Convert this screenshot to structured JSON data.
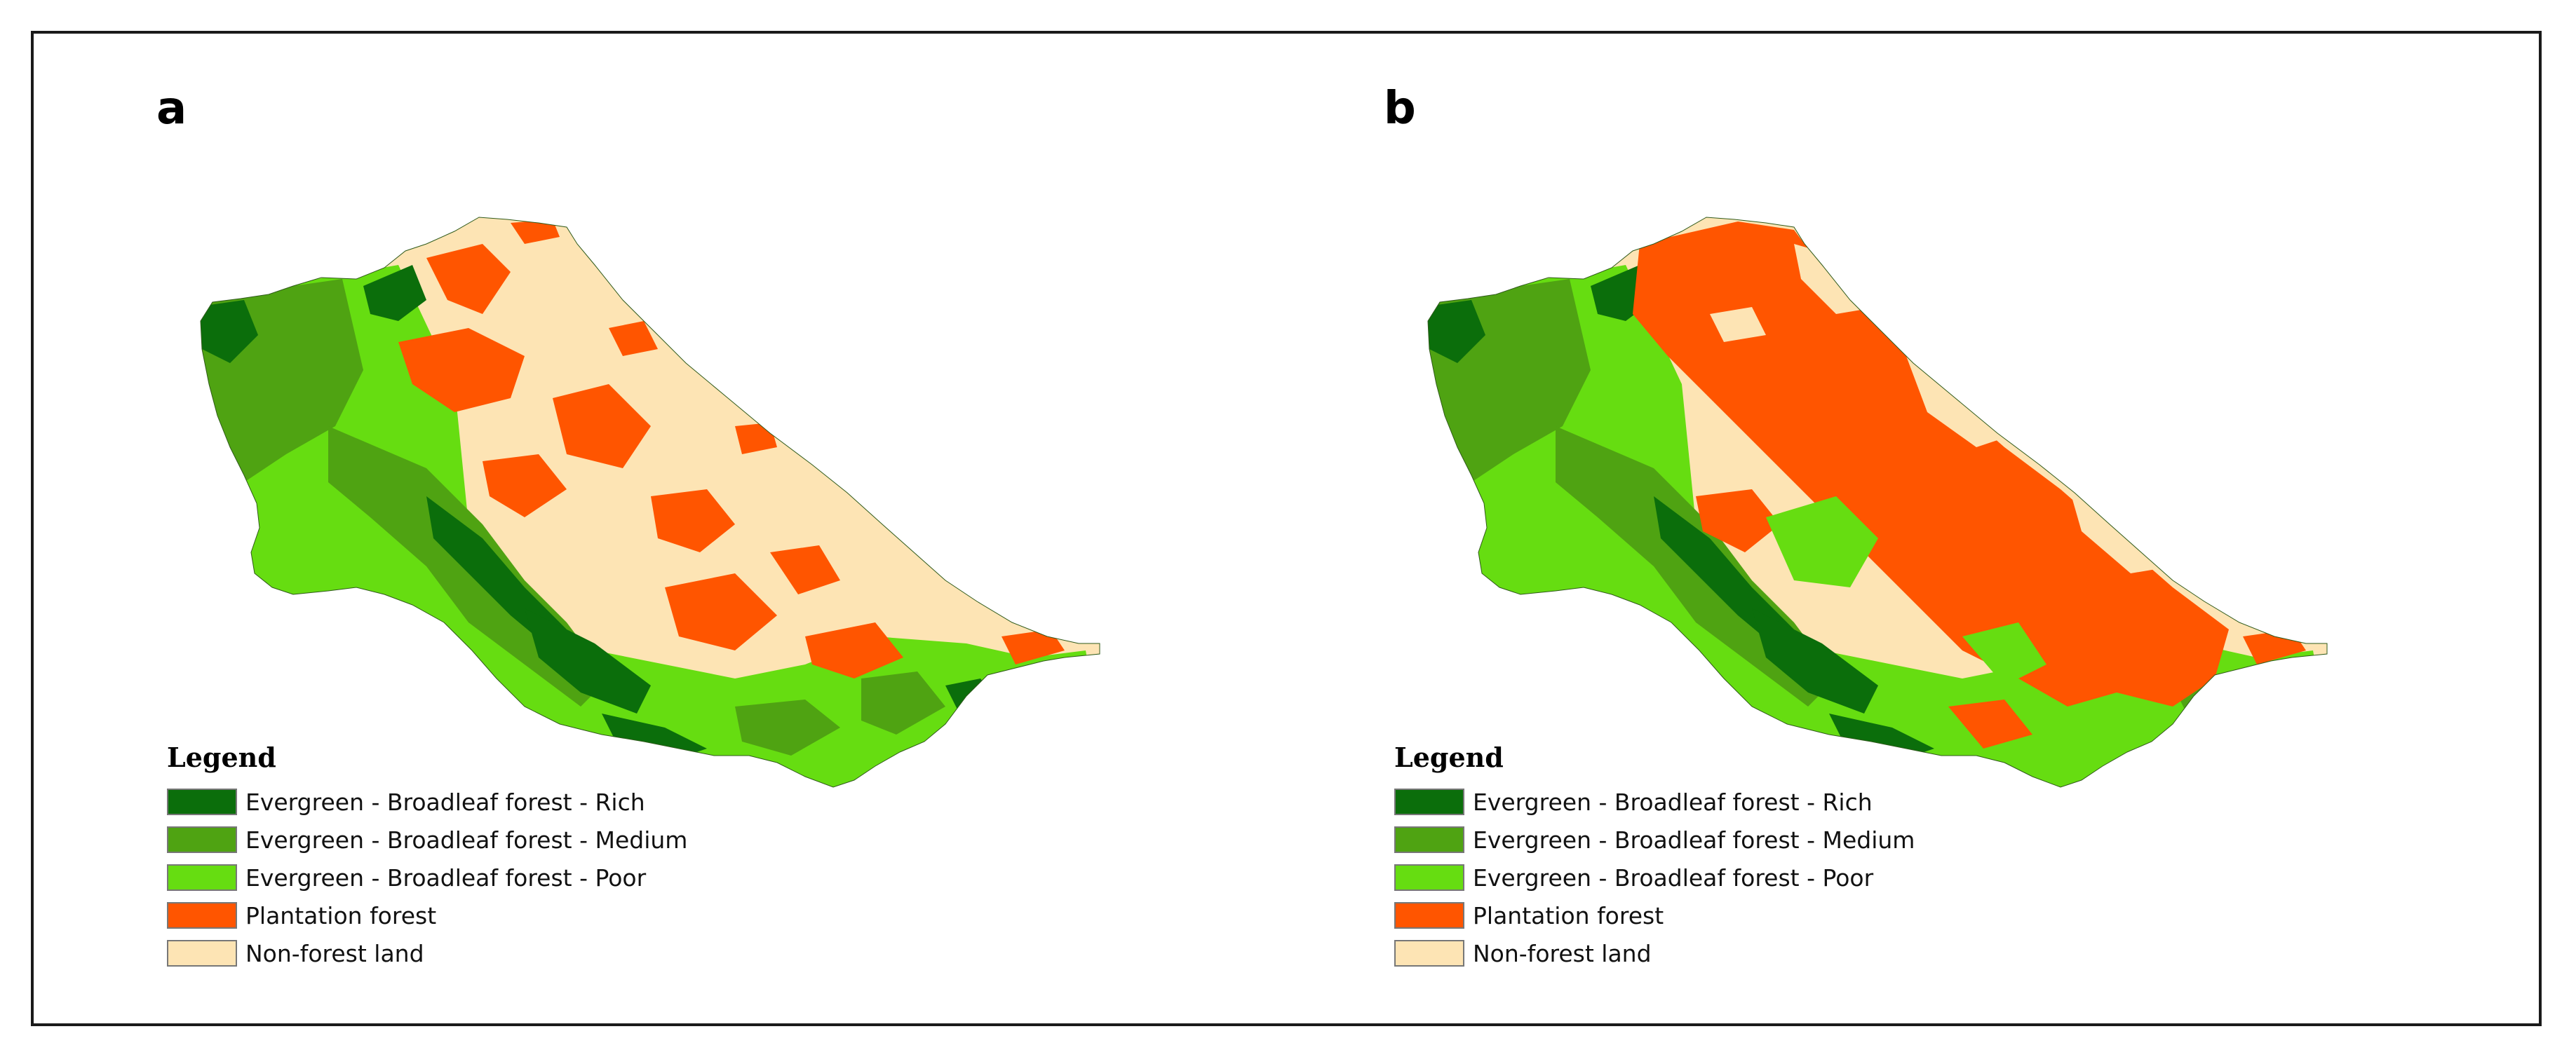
{
  "colors": {
    "rich": "#0b6e0b",
    "medium": "#4fa312",
    "poor": "#66dd11",
    "plantation": "#ff5500",
    "nonforest": "#fde4b4"
  },
  "panels": [
    {
      "label": "a",
      "legend": {
        "title": "Legend",
        "items": [
          {
            "label": "Evergreen - Broadleaf forest - Rich",
            "color": "#0b6e0b"
          },
          {
            "label": "Evergreen - Broadleaf forest - Medium",
            "color": "#4fa312"
          },
          {
            "label": "Evergreen - Broadleaf forest - Poor",
            "color": "#66dd11"
          },
          {
            "label": "Plantation forest",
            "color": "#ff5500"
          },
          {
            "label": "Non-forest land",
            "color": "#fde4b4"
          }
        ]
      }
    },
    {
      "label": "b",
      "legend": {
        "title": "Legend",
        "items": [
          {
            "label": "Evergreen - Broadleaf forest - Rich",
            "color": "#0b6e0b"
          },
          {
            "label": "Evergreen - Broadleaf forest - Medium",
            "color": "#4fa312"
          },
          {
            "label": "Evergreen - Broadleaf forest - Poor",
            "color": "#66dd11"
          },
          {
            "label": "Plantation forest",
            "color": "#ff5500"
          },
          {
            "label": "Non-forest land",
            "color": "#fde4b4"
          }
        ]
      }
    }
  ]
}
